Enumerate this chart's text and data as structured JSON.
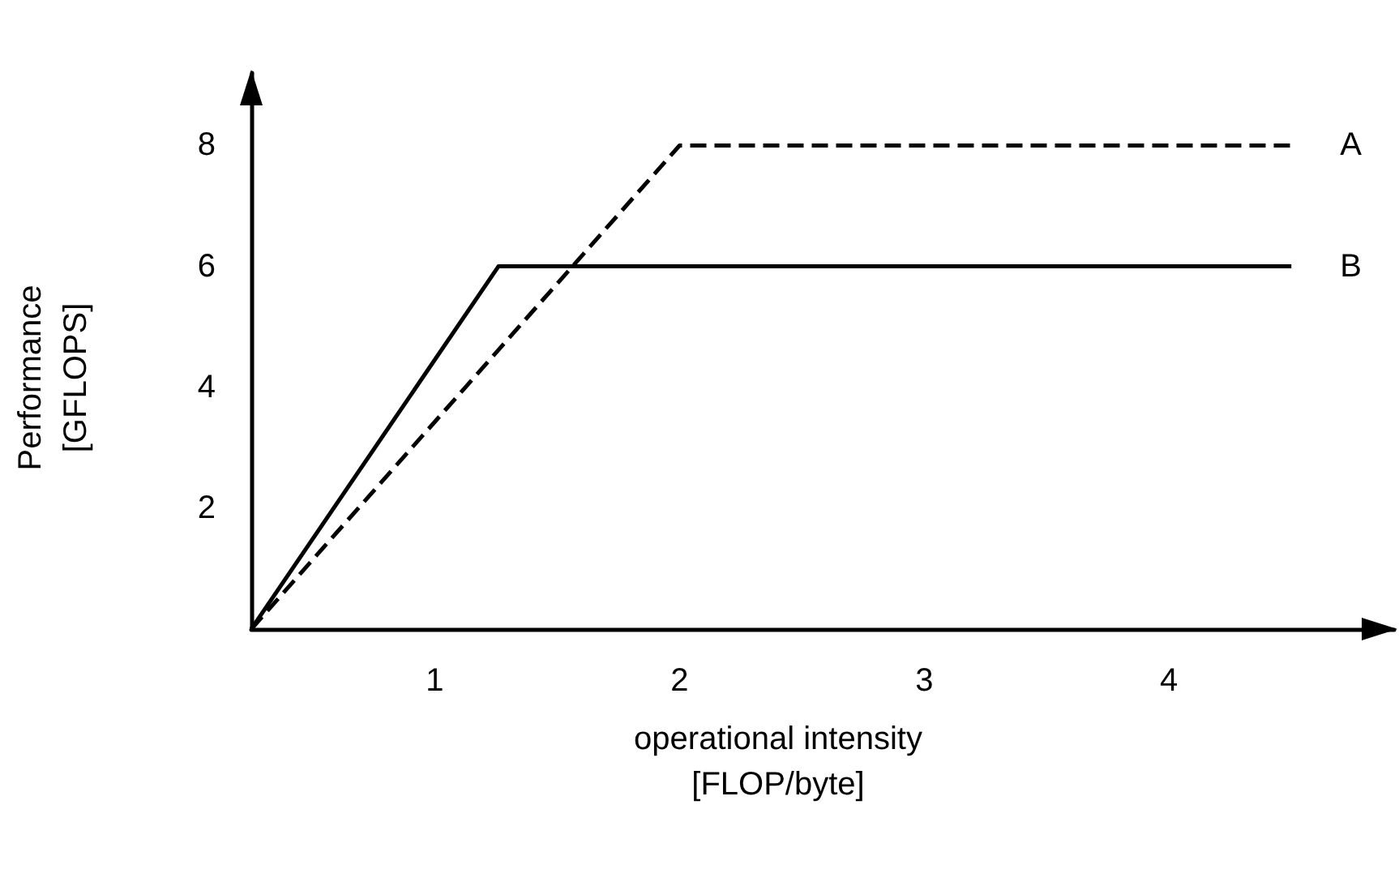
{
  "chart_data": {
    "type": "line",
    "xlabel": "operational intensity [FLOP/byte]",
    "ylabel": "Performance [GFLOPS]",
    "xlim": [
      0.25,
      4.92
    ],
    "ylim": [
      0,
      9.2
    ],
    "xticks": [
      1,
      2,
      3,
      4
    ],
    "yticks": [
      2,
      4,
      6,
      8
    ],
    "series": [
      {
        "name": "A",
        "color": "#000000",
        "line_style": "dashed",
        "x": [
          0.25,
          2,
          4.5
        ],
        "values": [
          0,
          8,
          8
        ]
      },
      {
        "name": "B",
        "color": "#000000",
        "line_style": "solid",
        "x": [
          0.25,
          1.26,
          4.5
        ],
        "values": [
          0,
          6,
          6
        ]
      }
    ],
    "marker": "none",
    "grid": false,
    "legend": false
  }
}
